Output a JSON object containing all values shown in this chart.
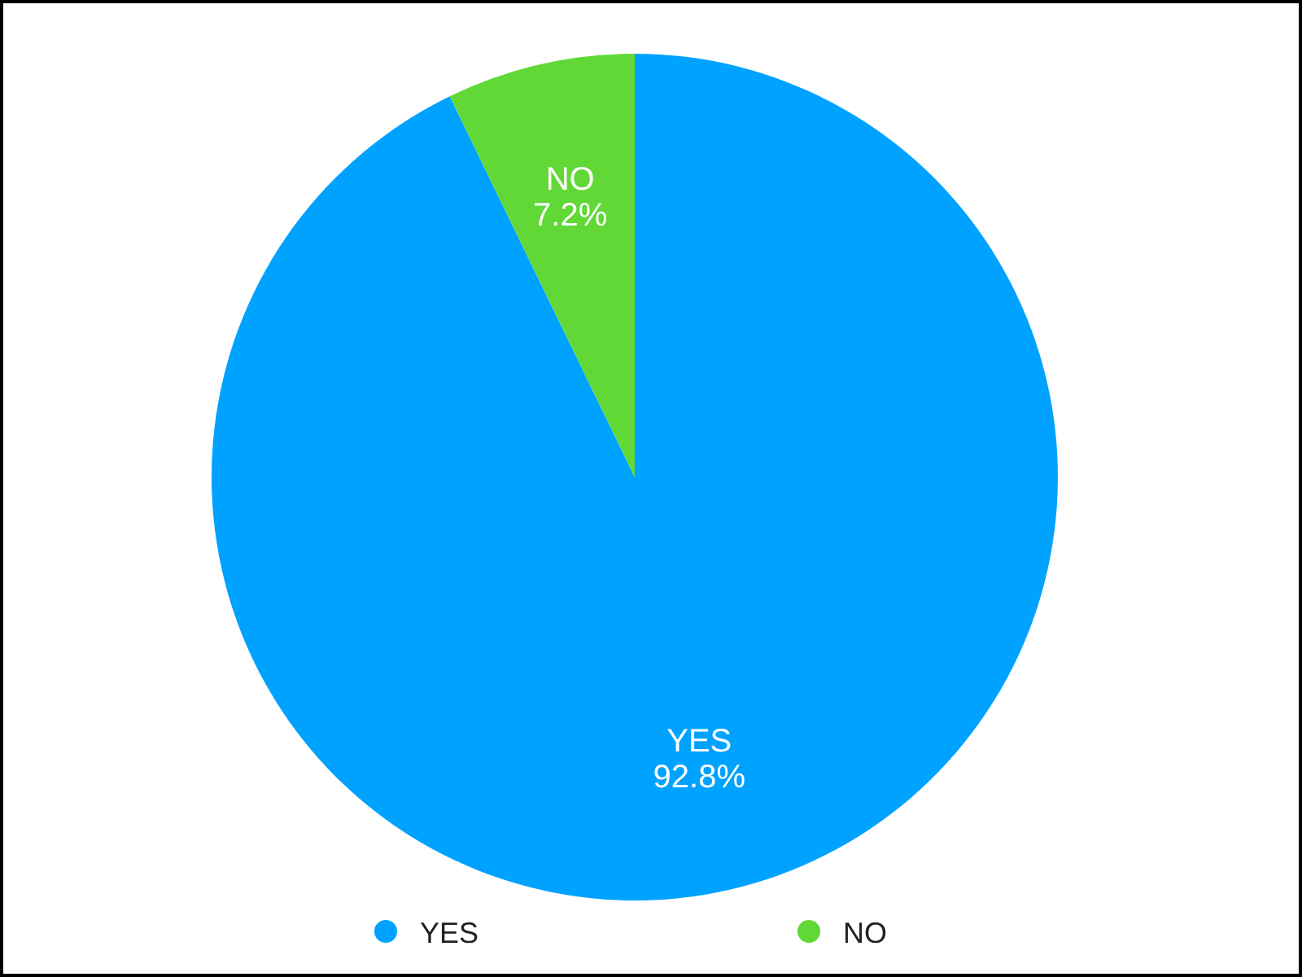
{
  "chart_data": {
    "type": "pie",
    "categories": [
      "YES",
      "NO"
    ],
    "values": [
      92.8,
      7.2
    ],
    "colors": [
      "#00a2ff",
      "#61d836"
    ],
    "value_labels": [
      "92.8%",
      "7.2%"
    ],
    "legend": "bottom"
  }
}
